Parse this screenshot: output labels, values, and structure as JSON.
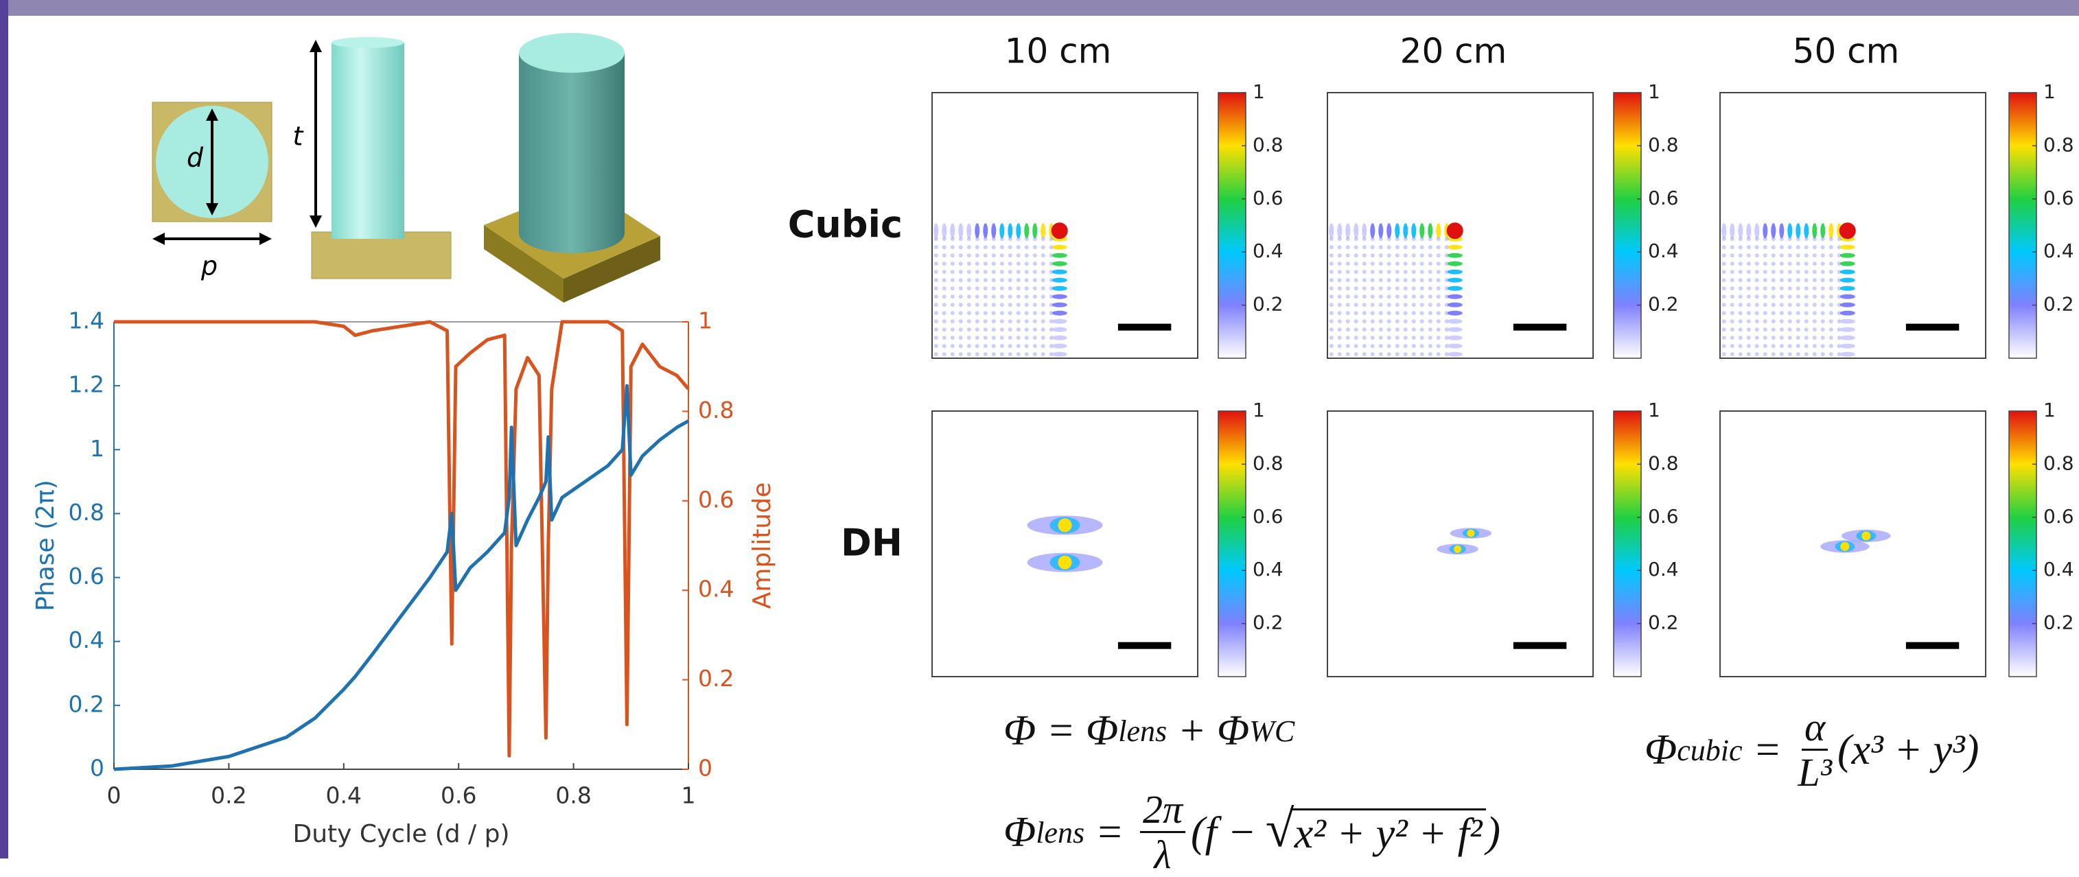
{
  "chart_data": {
    "type": "line",
    "x_label": "Duty Cycle (d / p)",
    "y_label": "Phase (2π)",
    "y2_label": "Amplitude",
    "x": [
      0,
      0.1,
      0.2,
      0.3,
      0.35,
      0.4,
      0.42,
      0.45,
      0.5,
      0.55,
      0.58,
      0.588,
      0.595,
      0.62,
      0.65,
      0.68,
      0.688,
      0.692,
      0.7,
      0.72,
      0.74,
      0.752,
      0.756,
      0.762,
      0.78,
      0.82,
      0.86,
      0.885,
      0.893,
      0.9,
      0.92,
      0.95,
      0.98,
      1
    ],
    "series": [
      {
        "color": "#1f72b0",
        "values": [
          0,
          0.01,
          0.04,
          0.1,
          0.16,
          0.25,
          0.29,
          0.36,
          0.48,
          0.6,
          0.68,
          0.8,
          0.56,
          0.63,
          0.68,
          0.74,
          0.85,
          1.07,
          0.7,
          0.78,
          0.85,
          0.9,
          1.04,
          0.78,
          0.85,
          0.9,
          0.95,
          1.0,
          1.2,
          0.92,
          0.98,
          1.03,
          1.07,
          1.09
        ]
      },
      {
        "color": "#d9531e",
        "axis": "y2",
        "values": [
          1,
          1,
          1,
          1,
          1,
          0.99,
          0.97,
          0.98,
          0.99,
          1,
          0.98,
          0.28,
          0.9,
          0.93,
          0.96,
          0.97,
          0.03,
          0.5,
          0.85,
          0.92,
          0.88,
          0.07,
          0.5,
          0.85,
          1,
          1,
          1,
          0.98,
          0.1,
          0.9,
          0.95,
          0.9,
          0.88,
          0.85
        ]
      }
    ],
    "xlim": [
      0,
      1
    ],
    "ylim": [
      0,
      1.4
    ],
    "y2lim": [
      0,
      1
    ],
    "xticks": [
      0,
      0.2,
      0.4,
      0.6,
      0.8,
      1
    ],
    "yticks": [
      0,
      0.2,
      0.4,
      0.6,
      0.8,
      1,
      1.2,
      1.4
    ],
    "y2ticks": [
      0,
      0.2,
      0.4,
      0.6,
      0.8,
      1
    ]
  },
  "unit_cell": {
    "diameter_label": "d",
    "height_label": "t",
    "period_label": "p"
  },
  "psf_grid": {
    "columns": [
      "10 cm",
      "20 cm",
      "50 cm"
    ],
    "rows": [
      "Cubic",
      "DH"
    ],
    "colorbar_lim": [
      0,
      1
    ],
    "colorbar_ticks": [
      0.2,
      0.4,
      0.6,
      0.8,
      1
    ]
  },
  "equations": [
    [
      {
        "text": "Φ = Φ"
      },
      {
        "text": "lens",
        "style": "sub"
      },
      {
        "text": " + Φ"
      },
      {
        "text": "WC",
        "style": "sub"
      }
    ],
    [
      {
        "text": "Φ"
      },
      {
        "text": "lens",
        "style": "sub"
      },
      {
        "text": " = "
      },
      {
        "style": "frac",
        "num": "2π",
        "den": "λ"
      },
      {
        "text": "(f − "
      },
      {
        "style": "sqrt",
        "text": "x² + y² + f²"
      },
      {
        "text": ")"
      }
    ],
    [
      {
        "text": "Φ"
      },
      {
        "text": "cubic",
        "style": "sub"
      },
      {
        "text": " = "
      },
      {
        "style": "frac",
        "num": "α",
        "den": "L³"
      },
      {
        "text": "(x³ + y³)"
      }
    ]
  ]
}
